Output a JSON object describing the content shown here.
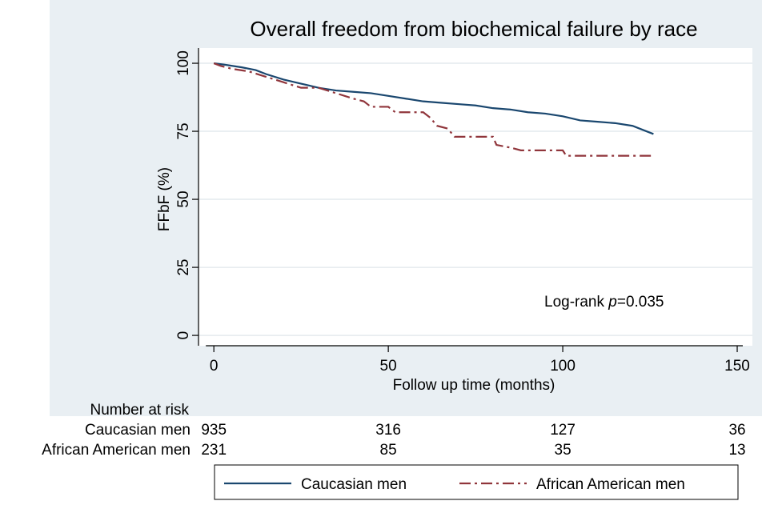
{
  "chart_data": {
    "type": "line",
    "title": "Overall freedom from biochemical failure by race",
    "x_label": "Follow up  time (months)",
    "y_label": "FFbF (%)",
    "annotation": [
      "Log-rank ",
      "p",
      "=0.035"
    ],
    "xlim": [
      -4.4,
      151.6
    ],
    "ylim": [
      -3.8,
      105.6
    ],
    "xticks": [
      0,
      50,
      100,
      150
    ],
    "yticks": [
      0,
      25,
      50,
      75,
      100
    ],
    "grid": true,
    "series": [
      {
        "name": "Caucasian men",
        "color": "#1a476f",
        "dash": "solid",
        "x": [
          0,
          3,
          8,
          12,
          15,
          20,
          25,
          30,
          35,
          40,
          45,
          50,
          55,
          60,
          65,
          70,
          75,
          80,
          85,
          90,
          95,
          100,
          105,
          110,
          115,
          120,
          124,
          126
        ],
        "values": [
          100,
          99.5,
          98.5,
          97.5,
          96,
          94,
          92.5,
          91,
          90,
          89.5,
          89,
          88,
          87,
          86,
          85.5,
          85,
          84.5,
          83.5,
          83,
          82,
          81.5,
          80.5,
          79,
          78.5,
          78,
          77,
          75,
          74
        ]
      },
      {
        "name": "African American men",
        "color": "#90353b",
        "dash": "dashdot",
        "x": [
          0,
          2,
          5,
          10,
          15,
          20,
          25,
          30,
          35,
          40,
          43,
          45,
          50,
          52,
          60,
          62,
          64,
          67,
          69,
          80,
          81,
          85,
          88,
          100,
          101,
          115,
          126
        ],
        "values": [
          100,
          99,
          98,
          97,
          95,
          93,
          91,
          91,
          89,
          87,
          86,
          84,
          84,
          82,
          82,
          80,
          77,
          76,
          73,
          73,
          70,
          69,
          68,
          68,
          66,
          66,
          66
        ]
      }
    ],
    "risk_table": {
      "title": "Number at risk",
      "rows": [
        {
          "name": "Caucasian men",
          "values": [
            935,
            316,
            127,
            36
          ]
        },
        {
          "name": "African American men",
          "values": [
            231,
            85,
            35,
            13
          ]
        }
      ]
    }
  }
}
